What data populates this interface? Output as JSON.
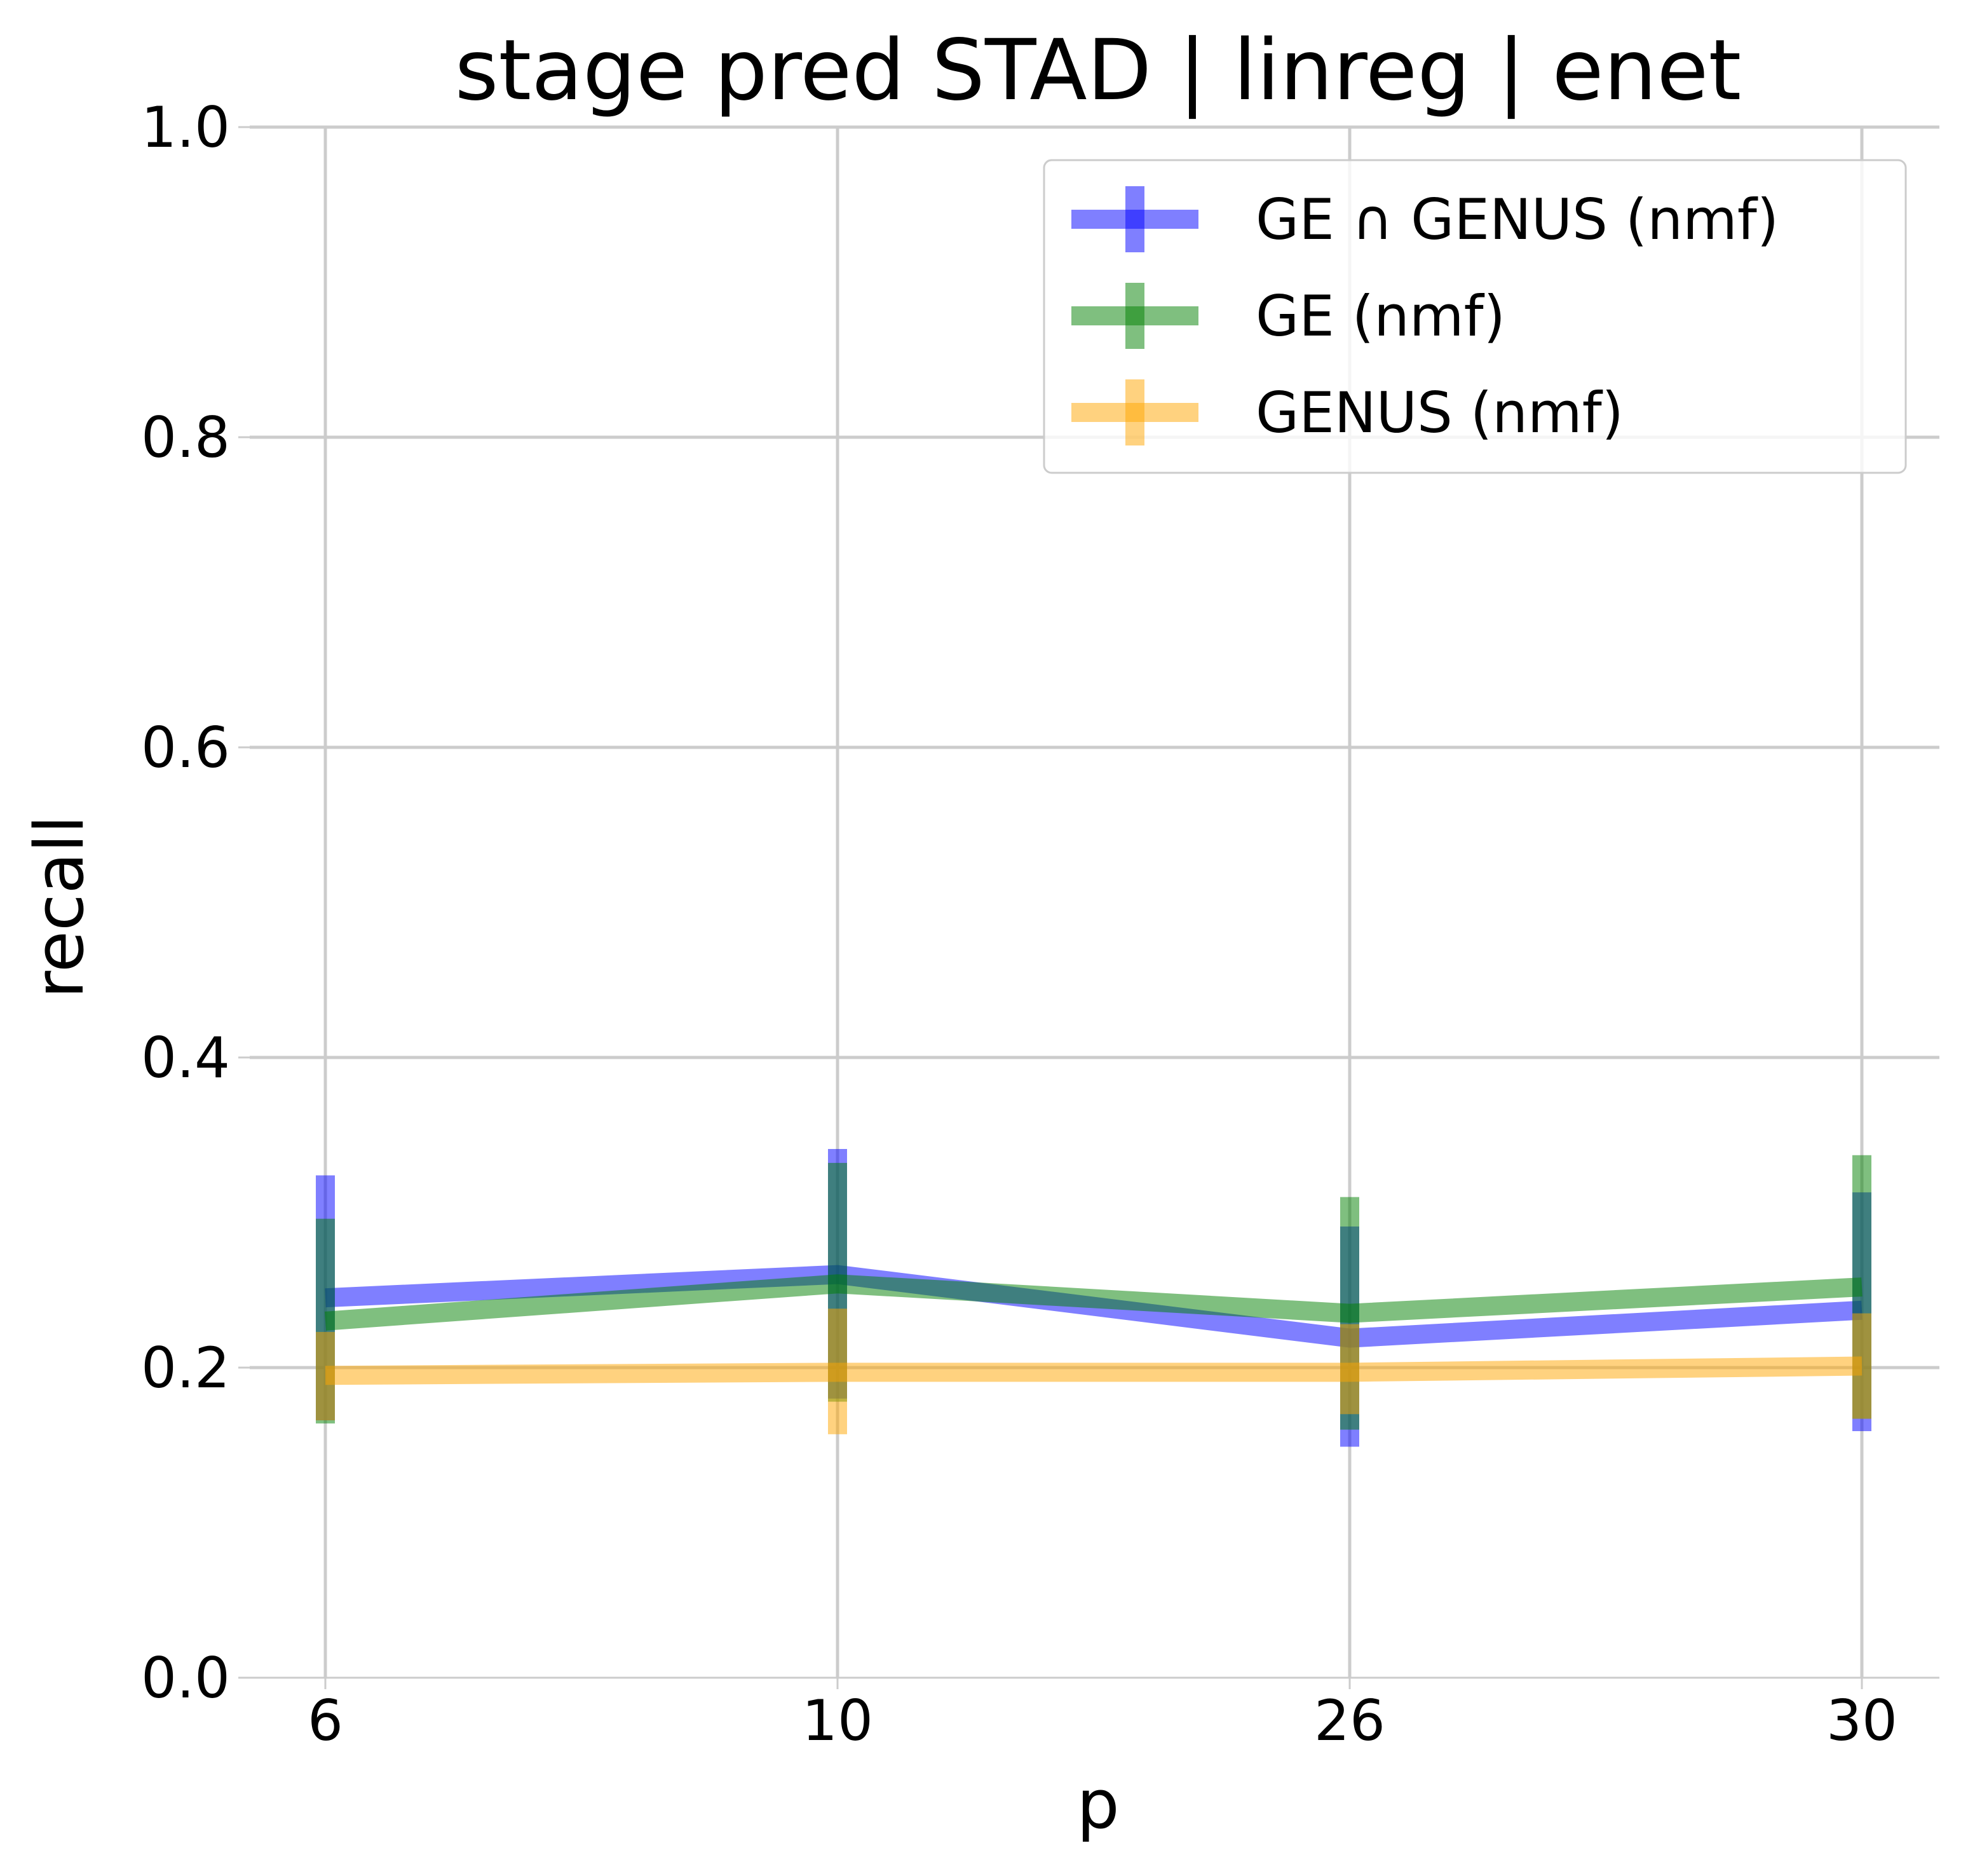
{
  "chart_data": {
    "type": "line",
    "title": "stage pred STAD | linreg | enet",
    "xlabel": "p",
    "ylabel": "recall",
    "categories": [
      "6",
      "10",
      "26",
      "30"
    ],
    "ylim": [
      0.0,
      1.0
    ],
    "yticks": [
      "0.0",
      "0.2",
      "0.4",
      "0.6",
      "0.8",
      "1.0"
    ],
    "grid": true,
    "legend_position": "top-right",
    "series": [
      {
        "name": "GE ∩ GENUS (nmf)",
        "color": "#0000ff",
        "values": [
          0.245,
          0.26,
          0.219,
          0.237
        ],
        "err_low": [
          0.166,
          0.18,
          0.149,
          0.159
        ],
        "err_high": [
          0.324,
          0.341,
          0.291,
          0.313
        ]
      },
      {
        "name": "GE (nmf)",
        "color": "#008000",
        "values": [
          0.23,
          0.254,
          0.235,
          0.252
        ],
        "err_low": [
          0.164,
          0.178,
          0.16,
          0.167
        ],
        "err_high": [
          0.296,
          0.332,
          0.31,
          0.337
        ]
      },
      {
        "name": "GENUS (nmf)",
        "color": "#ffa500",
        "values": [
          0.195,
          0.197,
          0.197,
          0.201
        ],
        "err_low": [
          0.166,
          0.157,
          0.17,
          0.167
        ],
        "err_high": [
          0.223,
          0.238,
          0.228,
          0.235
        ]
      }
    ]
  }
}
